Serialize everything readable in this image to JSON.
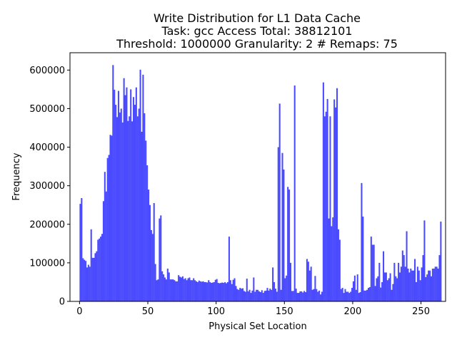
{
  "chart_data": {
    "type": "bar",
    "title_lines": [
      "Write Distribution for L1 Data Cache",
      "Task: gcc Access Total: 38812101",
      "Threshold: 1000000 Granularity: 2 # Remaps: 75"
    ],
    "xlabel": "Physical Set Location",
    "ylabel": "Frequency",
    "xlim": [
      -7,
      268
    ],
    "ylim": [
      0,
      645000
    ],
    "xticks": [
      0,
      50,
      100,
      150,
      200,
      250
    ],
    "yticks": [
      0,
      100000,
      200000,
      300000,
      400000,
      500000,
      600000
    ],
    "xtick_labels": [
      "0",
      "50",
      "100",
      "150",
      "200",
      "250"
    ],
    "ytick_labels": [
      "0",
      "100000",
      "200000",
      "300000",
      "400000",
      "500000",
      "600000"
    ],
    "bar_color": "#4a4aff",
    "grid": false,
    "bins": {
      "start": 0,
      "width": 1,
      "values": [
        253000,
        268000,
        112000,
        108000,
        105000,
        88000,
        95000,
        90000,
        187000,
        113000,
        113000,
        125000,
        130000,
        160000,
        163000,
        168000,
        175000,
        260000,
        336000,
        285000,
        372000,
        380000,
        432000,
        430000,
        613000,
        549000,
        510000,
        478000,
        546000,
        490000,
        500000,
        464000,
        579000,
        535000,
        555000,
        468000,
        480000,
        550000,
        467000,
        530000,
        510000,
        555000,
        480000,
        500000,
        601000,
        440000,
        588000,
        488000,
        417000,
        353000,
        290000,
        250000,
        185000,
        175000,
        255000,
        97000,
        55000,
        57000,
        215000,
        223000,
        78000,
        70000,
        62000,
        57000,
        85000,
        75000,
        57000,
        57000,
        57000,
        55000,
        52000,
        52000,
        68000,
        64000,
        62000,
        65000,
        58000,
        60000,
        55000,
        60000,
        62000,
        55000,
        55000,
        60000,
        55000,
        52000,
        50000,
        54000,
        52000,
        51000,
        52000,
        50000,
        50000,
        49000,
        55000,
        50000,
        48000,
        49000,
        50000,
        56000,
        58000,
        48000,
        47000,
        48000,
        49000,
        48000,
        50000,
        47000,
        50000,
        168000,
        55000,
        45000,
        56000,
        60000,
        40000,
        32000,
        30000,
        35000,
        33000,
        34000,
        27000,
        25000,
        59000,
        26000,
        30000,
        22000,
        28000,
        62000,
        25000,
        30000,
        30000,
        26000,
        24000,
        29000,
        22000,
        27000,
        28000,
        35000,
        28000,
        33000,
        30000,
        88000,
        50000,
        33000,
        25000,
        400000,
        513000,
        30000,
        385000,
        342000,
        60000,
        67000,
        297000,
        290000,
        100000,
        27000,
        27000,
        560000,
        33000,
        22000,
        22000,
        26000,
        26000,
        23000,
        27000,
        24000,
        110000,
        103000,
        80000,
        90000,
        30000,
        32000,
        66000,
        32000,
        25000,
        28000,
        18000,
        25000,
        568000,
        480000,
        492000,
        525000,
        215000,
        480000,
        195000,
        218000,
        524000,
        503000,
        553000,
        187000,
        160000,
        32000,
        35000,
        22000,
        32000,
        25000,
        25000,
        22000,
        25000,
        35000,
        52000,
        67000,
        30000,
        70000,
        22000,
        24000,
        307000,
        220000,
        28000,
        28000,
        30000,
        35000,
        37000,
        168000,
        147000,
        147000,
        40000,
        60000,
        65000,
        100000,
        36000,
        50000,
        130000,
        75000,
        75000,
        55000,
        60000,
        73000,
        30000,
        45000,
        100000,
        65000,
        60000,
        100000,
        75000,
        90000,
        132000,
        120000,
        90000,
        182000,
        85000,
        75000,
        85000,
        80000,
        80000,
        110000,
        50000,
        90000,
        80000,
        55000,
        88000,
        120000,
        210000,
        63000,
        70000,
        80000,
        80000,
        65000,
        85000,
        85000,
        90000,
        90000,
        85000,
        120000,
        207000
      ]
    }
  }
}
